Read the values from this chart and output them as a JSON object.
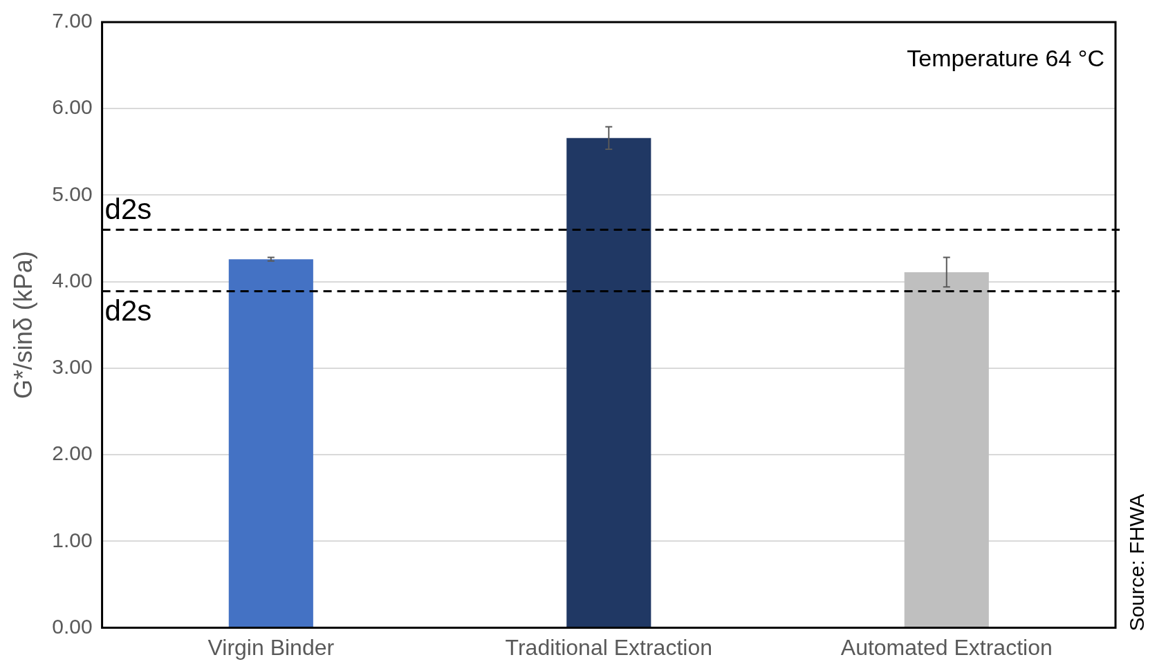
{
  "chart_data": {
    "type": "bar",
    "ylabel": "G*/sinδ (kPa)",
    "categories": [
      "Virgin Binder",
      "Traditional Extraction",
      "Automated Extraction"
    ],
    "values": [
      4.26,
      5.66,
      4.11
    ],
    "colors": [
      "#4472c4",
      "#203864",
      "#bfbfbf"
    ],
    "errors": [
      0.02,
      0.13,
      0.17
    ],
    "ylim": [
      0,
      7
    ],
    "yticks": [
      {
        "value": 0,
        "label": "0.00"
      },
      {
        "value": 1,
        "label": "1.00"
      },
      {
        "value": 2,
        "label": "2.00"
      },
      {
        "value": 3,
        "label": "3.00"
      },
      {
        "value": 4,
        "label": "4.00"
      },
      {
        "value": 5,
        "label": "5.00"
      },
      {
        "value": 6,
        "label": "6.00"
      },
      {
        "value": 7,
        "label": "7.00"
      }
    ],
    "grid": "y",
    "legend": false,
    "ref_lines": [
      {
        "axis": "y",
        "value": 4.6,
        "label": "d2s",
        "color": "#000000",
        "line_style": "dashed"
      },
      {
        "axis": "y",
        "value": 3.89,
        "label": "d2s",
        "color": "#000000",
        "line_style": "dashed"
      }
    ],
    "annotations": [
      "Temperature 64 °C",
      "Source: FHWA"
    ]
  }
}
